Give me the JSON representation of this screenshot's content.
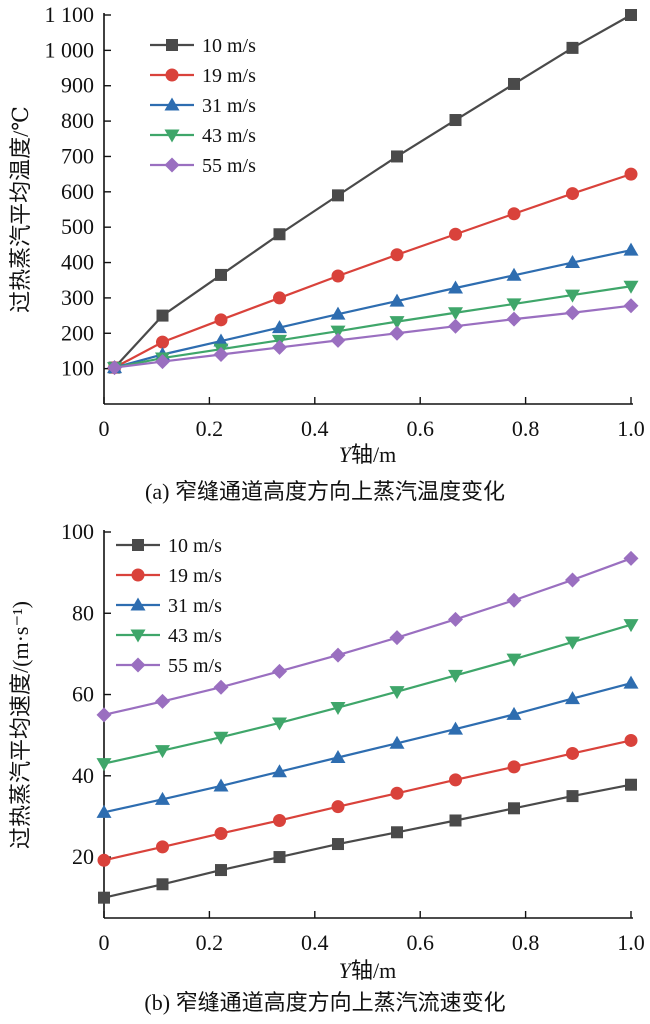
{
  "chart_data": [
    {
      "type": "line",
      "panel": "a",
      "caption": "(a) 窄缝通道高度方向上蒸汽温度变化",
      "xlabel_italic": "Y",
      "xlabel_rest": "轴/m",
      "ylabel": "过热蒸汽平均温度/℃",
      "xlim": [
        0,
        1.0
      ],
      "ylim": [
        0,
        1100
      ],
      "xticks": [
        0,
        0.2,
        0.4,
        0.6,
        0.8,
        1.0
      ],
      "xtick_labels": [
        "0",
        "0.2",
        "0.4",
        "0.6",
        "0.8",
        "1.0"
      ],
      "yticks": [
        100,
        200,
        300,
        400,
        500,
        600,
        700,
        800,
        900,
        1000,
        1100
      ],
      "ytick_labels": [
        "100",
        "200",
        "300",
        "400",
        "500",
        "600",
        "700",
        "800",
        "900",
        "1 000",
        "1 100"
      ],
      "legend_position": "top-left",
      "x": [
        0.02,
        0.111,
        0.222,
        0.333,
        0.444,
        0.556,
        0.667,
        0.778,
        0.889,
        1.0
      ],
      "series": [
        {
          "name": "10 m/s",
          "color": "#4a4a4a",
          "marker": "square",
          "values": [
            103,
            250,
            365,
            480,
            590,
            700,
            803,
            905,
            1007,
            1100
          ]
        },
        {
          "name": "19 m/s",
          "color": "#d9423b",
          "marker": "circle",
          "values": [
            103,
            175,
            238,
            300,
            362,
            422,
            480,
            538,
            595,
            650
          ]
        },
        {
          "name": "31 m/s",
          "color": "#2e6db0",
          "marker": "triangle-up",
          "values": [
            103,
            140,
            178,
            216,
            254,
            291,
            328,
            364,
            400,
            435
          ]
        },
        {
          "name": "43 m/s",
          "color": "#3fa66a",
          "marker": "triangle-down",
          "values": [
            103,
            130,
            155,
            180,
            206,
            233,
            258,
            283,
            308,
            333
          ]
        },
        {
          "name": "55 m/s",
          "color": "#9a6fc0",
          "marker": "diamond",
          "values": [
            103,
            120,
            140,
            160,
            180,
            200,
            220,
            240,
            258,
            278
          ]
        }
      ]
    },
    {
      "type": "line",
      "panel": "b",
      "caption": "(b) 窄缝通道高度方向上蒸汽流速变化",
      "xlabel_italic": "Y",
      "xlabel_rest": "轴/m",
      "ylabel": "过热蒸汽平均速度/(m·s⁻¹)",
      "xlim": [
        0,
        1.0
      ],
      "ylim": [
        5,
        100
      ],
      "xticks": [
        0,
        0.2,
        0.4,
        0.6,
        0.8,
        1.0
      ],
      "xtick_labels": [
        "0",
        "0.2",
        "0.4",
        "0.6",
        "0.8",
        "1.0"
      ],
      "yticks": [
        20,
        40,
        60,
        80,
        100
      ],
      "ytick_labels": [
        "20",
        "40",
        "60",
        "80",
        "100"
      ],
      "legend_position": "top-left",
      "x": [
        0.0,
        0.111,
        0.222,
        0.333,
        0.444,
        0.556,
        0.667,
        0.778,
        0.889,
        1.0
      ],
      "series": [
        {
          "name": "10 m/s",
          "color": "#4a4a4a",
          "marker": "square",
          "values": [
            10,
            13.3,
            16.8,
            20,
            23.2,
            26.1,
            29,
            32,
            35,
            37.8
          ]
        },
        {
          "name": "19 m/s",
          "color": "#d9423b",
          "marker": "circle",
          "values": [
            19.2,
            22.5,
            25.8,
            29,
            32.4,
            35.7,
            39,
            42.2,
            45.5,
            48.7
          ]
        },
        {
          "name": "31 m/s",
          "color": "#2e6db0",
          "marker": "triangle-up",
          "values": [
            31,
            34.2,
            37.5,
            41,
            44.5,
            48,
            51.5,
            55.1,
            59,
            62.8
          ]
        },
        {
          "name": "43 m/s",
          "color": "#3fa66a",
          "marker": "triangle-down",
          "values": [
            43,
            46.2,
            49.5,
            53,
            56.8,
            60.7,
            64.7,
            68.7,
            72.9,
            77.2
          ]
        },
        {
          "name": "55 m/s",
          "color": "#9a6fc0",
          "marker": "diamond",
          "values": [
            55,
            58.3,
            61.8,
            65.7,
            69.7,
            74,
            78.5,
            83.2,
            88.2,
            93.5
          ]
        }
      ]
    }
  ]
}
